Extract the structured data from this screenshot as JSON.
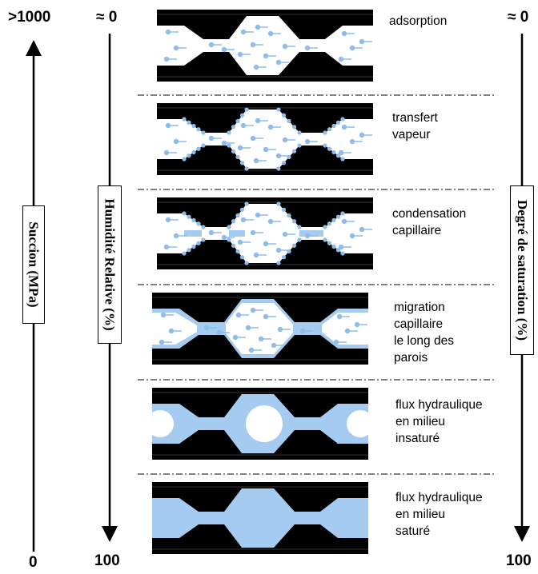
{
  "axes": {
    "suction": {
      "label": "Succion (MPa)",
      "top": ">1000",
      "bottom": "0"
    },
    "humidity": {
      "label": "Humidité Relative (%)",
      "top": "≈ 0",
      "bottom": "100"
    },
    "saturation": {
      "label": "Degré de saturation (%)",
      "top": "≈ 0",
      "bottom": "100"
    }
  },
  "stages": [
    {
      "lines": [
        "adsorption"
      ]
    },
    {
      "lines": [
        "transfert",
        "vapeur"
      ]
    },
    {
      "lines": [
        "condensation",
        "capillaire"
      ]
    },
    {
      "lines": [
        "migration",
        "capillaire",
        "le long des",
        "parois"
      ]
    },
    {
      "lines": [
        "flux hydraulique",
        "en milieu",
        "insaturé"
      ]
    },
    {
      "lines": [
        "flux hydraulique",
        "en milieu",
        "saturé"
      ]
    }
  ],
  "colors": {
    "solid": "#000000",
    "water": "#a6cbf0",
    "vapour": "#8fbcea"
  }
}
